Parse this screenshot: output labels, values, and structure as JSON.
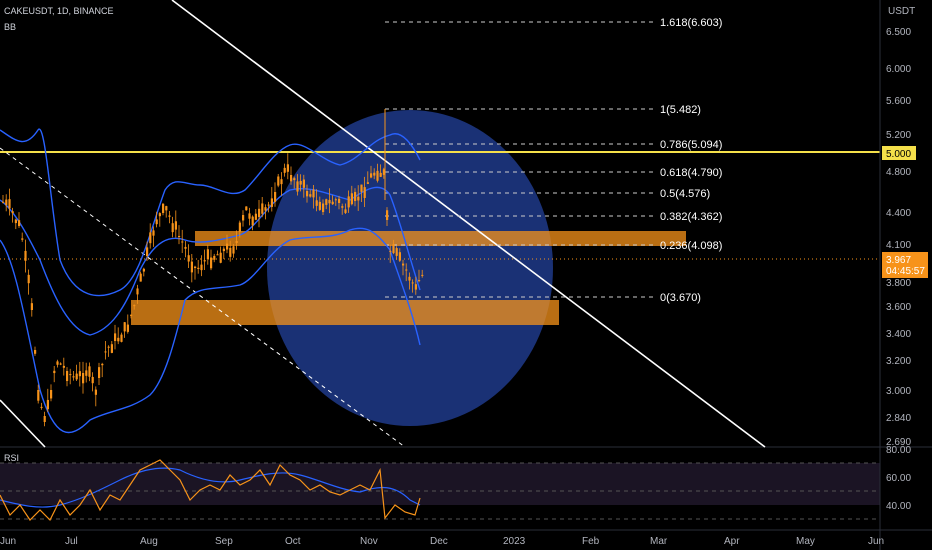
{
  "header": {
    "title": "CAKEUSDT, 1D, BINANCE",
    "indicator": "BB"
  },
  "price_axis": {
    "currency": "USDT",
    "ticks": [
      "6.500",
      "6.000",
      "5.600",
      "5.200",
      "4.800",
      "4.400",
      "4.100",
      "3.800",
      "3.600",
      "3.400",
      "3.200",
      "3.000",
      "2.840",
      "2.690"
    ],
    "badge_level": "5.000",
    "badge_last": "3.967",
    "countdown": "04:45:57"
  },
  "rsi": {
    "label": "RSI",
    "ticks": [
      "80.00",
      "60.00",
      "40.00"
    ]
  },
  "time_axis": {
    "labels": [
      "Jun",
      "Jul",
      "Aug",
      "Sep",
      "Oct",
      "Nov",
      "Dec",
      "2023",
      "Feb",
      "Mar",
      "Apr",
      "May",
      "Jun"
    ]
  },
  "fib_levels": [
    {
      "label": "1.618(6.603)"
    },
    {
      "label": "1(5.482)"
    },
    {
      "label": "0.786(5.094)"
    },
    {
      "label": "0.618(4.790)"
    },
    {
      "label": "0.5(4.576)"
    },
    {
      "label": "0.382(4.362)"
    },
    {
      "label": "0.236(4.098)"
    },
    {
      "label": "0(3.670)"
    }
  ],
  "colors": {
    "background": "#000000",
    "candle": "#f7931a",
    "bollinger": "#2962ff",
    "zone": "#f7931a",
    "circle": "#1e3a8a",
    "resistance": "#f5e04a",
    "trendline": "#ffffff",
    "rsi_line": "#f7931a",
    "rsi_ma": "#2962ff"
  }
}
